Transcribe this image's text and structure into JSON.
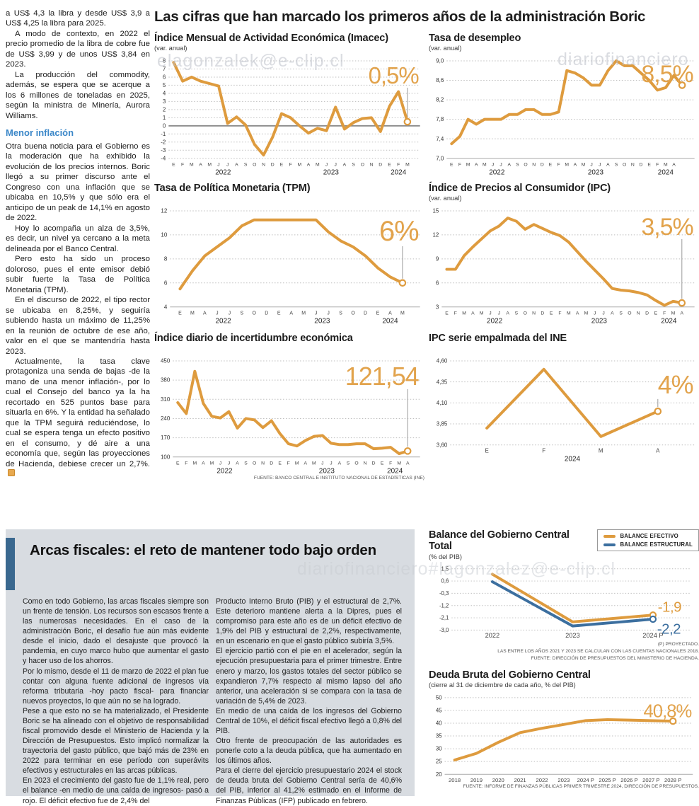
{
  "colors": {
    "accent": "#de9b3e",
    "headline": "#e2a34c",
    "blue": "#3c6f9f",
    "subhead_blue": "#3b87c8",
    "panel_bg": "#d8dce1",
    "panel_bar": "#3a688f",
    "grid": "#bfbfbf"
  },
  "watermarks": {
    "wm1": "elagonzalek@e-clip.cl",
    "wm2": "diariofinanciero",
    "wm3": "diariofinanciero#lagonzalez@e-clip.cl"
  },
  "main_title": "Las cifras que han marcado los primeros años de la administración Boric",
  "left_article": {
    "paragraphs_before": [
      "a US$ 4,3 la libra y desde US$ 3,9 a US$ 4,25 la libra para 2025.",
      "A modo de contexto, en 2022 el precio promedio de la libra de cobre fue de US$ 3,99 y de unos US$ 3,84 en 2023.",
      "La producción del commodity, además, se espera que se acerque a los 6 millones de toneladas en 2025, según la ministra de Minería, Aurora Williams."
    ],
    "subhead": "Menor inflación",
    "paragraphs_after": [
      "Otra buena noticia para el Gobierno es la moderación que ha exhibido la evolución de los precios internos. Boric llegó a su primer discurso ante el Congreso con una inflación que se ubicaba en 10,5% y que sólo era el anticipo de un peak de 14,1% en agosto de 2022.",
      "Hoy lo acompaña un alza de 3,5%, es decir, un nivel ya cercano a la meta delineada por el Banco Central.",
      "Pero esto ha sido un proceso doloroso, pues el ente emisor debió subir fuerte la Tasa de Política Monetaria (TPM).",
      "En el discurso de 2022, el tipo rector se ubicaba en 8,25%, y seguiría subiendo hasta un máximo de 11,25% en la reunión de octubre de ese año, valor en el que se mantendría hasta 2023.",
      "Actualmente, la tasa clave protagoniza una senda de bajas -de la mano de una menor inflación-, por lo cual el Consejo del banco ya la ha recortado en 525 puntos base para situarla en 6%. Y la entidad ha señalado que la TPM seguirá reduciéndose, lo cual se espera tenga un efecto positivo en el consumo, y dé aire a una economía que, según las proyecciones de Hacienda, debiese crecer un 2,7%."
    ]
  },
  "fiscal_panel": {
    "title": "Arcas fiscales: el reto de mantener todo bajo orden",
    "col1": [
      "Como en todo Gobierno, las arcas fiscales siempre son un frente de tensión. Los recursos son escasos frente a las numerosas necesidades. En el caso de la administración Boric, el desafío fue aún más evidente desde el inicio, dado el desajuste que provocó la pandemia, en cuyo marco hubo que aumentar el gasto y hacer uso de los ahorros.",
      "Por lo mismo, desde el 11 de marzo de 2022 el plan fue contar con alguna fuente adicional de ingresos vía reforma tributaria -hoy pacto fiscal- para financiar nuevos proyectos, lo que aún no se ha logrado.",
      "Pese a que esto no se ha materializado, el Presidente Boric se ha alineado con el objetivo de responsabilidad fiscal promovido desde el Ministerio de Hacienda y la Dirección de Presupuestos. Esto implicó normalizar la trayectoria del gasto público, que bajó más de 23% en 2022 para terminar en ese período con superávits efectivos y estructurales en las arcas públicas.",
      "En 2023 el crecimiento del gasto fue de 1,1% real, pero el balance -en medio de una caída de ingresos-  pasó a rojo. El déficit efectivo fue de 2,4% del"
    ],
    "col2": [
      "Producto Interno Bruto (PIB) y el estructural de 2,7%. Este deterioro mantiene alerta a la Dipres, pues el compromiso para este año es de un déficit efectivo de 1,9% del PIB y estructural de 2,2%, respectivamente, en un escenario en que el gasto público subiría 3,5%.",
      "El ejercicio partió con el pie en el acelerador, según la ejecución presupuestaria para el primer trimestre. Entre enero y marzo, los gastos totales del sector público se expandieron 7,7% respecto al mismo lapso del año anterior, una aceleración si se compara con la tasa de variación de 5,4% de 2023.",
      "En medio de una caída de los ingresos del Gobierno Central de 10%, el déficit fiscal efectivo llegó a 0,8% del PIB.",
      "Otro frente de preocupación de las autoridades es ponerle coto a la deuda pública, que ha aumentado en los últimos años.",
      "Para el cierre del ejercicio presupuestario 2024 el stock de deuda bruta del Gobierno Central sería de 40,6% del PIB, inferior al 41,2% estimado en el Informe de Finanzas Públicas (IFP) publicado en febrero."
    ]
  },
  "chart_data": [
    {
      "type": "line",
      "title": "Índice Mensual de Actividad Económica (Imacec)",
      "subtitle": "(var. anual)",
      "headline": "0,5%",
      "headline_size": 33,
      "headline_dy": 32,
      "pointer": true,
      "pointer_top": 38,
      "yticks": [
        8,
        7,
        6,
        5,
        4,
        3,
        2,
        1,
        0,
        -1,
        -2,
        -3,
        -4
      ],
      "ytick_labels": [
        "8",
        "7",
        "6",
        "5",
        "4",
        "3",
        "2",
        "1",
        "0",
        "-1",
        "-2",
        "-3",
        "-4"
      ],
      "solid_at": 0,
      "ml": 20,
      "inset": [
        0.02,
        0.95
      ],
      "xlabels": [
        "E",
        "F",
        "M",
        "A",
        "M",
        "J",
        "J",
        "A",
        "S",
        "O",
        "N",
        "D",
        "E",
        "F",
        "M",
        "A",
        "M",
        "J",
        "J",
        "A",
        "S",
        "O",
        "N",
        "D",
        "E",
        "F",
        "M"
      ],
      "years": [
        {
          "label": "2022",
          "index": 5.5
        },
        {
          "label": "2023",
          "index": 17.5
        },
        {
          "label": "2024",
          "index": 25
        }
      ],
      "series": [
        {
          "name": "Imacec",
          "color": "accent",
          "values": [
            7.8,
            5.5,
            6,
            5.5,
            5.2,
            4.9,
            0.3,
            1.1,
            0.1,
            -2.3,
            -3.6,
            -1.4,
            1.5,
            1,
            0,
            -0.9,
            -0.3,
            -0.6,
            2.3,
            -0.4,
            0.4,
            0.9,
            1,
            -0.7,
            2.4,
            4.2,
            0.5
          ]
        }
      ],
      "source": ""
    },
    {
      "type": "line",
      "title": "Tasa de desempleo",
      "subtitle": "(var. anual)",
      "headline": "8,5%",
      "headline_size": 34,
      "headline_dy": 30,
      "pointer": true,
      "pointer_top": 36,
      "yticks": [
        9,
        8.6,
        8.2,
        7.8,
        7.4,
        7
      ],
      "ytick_labels": [
        "9,0",
        "8,6",
        "8,2",
        "7,8",
        "7,4",
        "7,0"
      ],
      "baseline_solid": true,
      "ml": 25,
      "inset": [
        0.02,
        0.95
      ],
      "xlabels": [
        "E",
        "F",
        "M",
        "A",
        "M",
        "J",
        "J",
        "A",
        "S",
        "O",
        "N",
        "D",
        "E",
        "F",
        "M",
        "A",
        "M",
        "J",
        "J",
        "A",
        "S",
        "O",
        "N",
        "D",
        "E",
        "F",
        "M",
        "A",
        ""
      ],
      "years": [
        {
          "label": "2022",
          "index": 5.5
        },
        {
          "label": "2023",
          "index": 17.5
        },
        {
          "label": "2024",
          "index": 26
        }
      ],
      "series": [
        {
          "name": "Tasa de desempleo",
          "color": "accent",
          "values": [
            7.3,
            7.45,
            7.8,
            7.7,
            7.8,
            7.8,
            7.8,
            7.9,
            7.9,
            8,
            8,
            7.9,
            7.9,
            7.95,
            8.8,
            8.75,
            8.65,
            8.5,
            8.5,
            8.8,
            9,
            8.9,
            8.9,
            8.75,
            8.6,
            8.4,
            8.45,
            8.7,
            8.5
          ]
        }
      ],
      "source": ""
    },
    {
      "type": "line",
      "title": "Tasa de Política Monetaria (TPM)",
      "subtitle": "",
      "headline": "6%",
      "headline_size": 40,
      "headline_dy": 42,
      "pointer": true,
      "pointer_top": 50,
      "yticks": [
        12,
        10,
        8,
        6,
        4
      ],
      "ytick_labels": [
        "12",
        "10",
        "8",
        "6",
        "4"
      ],
      "baseline_solid": true,
      "ml": 22,
      "inset": [
        0.04,
        0.93
      ],
      "xfont": 7,
      "xlabels": [
        "E",
        "M",
        "A",
        "J",
        "J",
        "S",
        "O",
        "D",
        "E",
        "A",
        "M",
        "J",
        "J",
        "S",
        "O",
        "D",
        "E",
        "A",
        "M"
      ],
      "years": [
        {
          "label": "2022",
          "index": 3.5
        },
        {
          "label": "2023",
          "index": 11.5
        },
        {
          "label": "2024",
          "index": 17
        }
      ],
      "series": [
        {
          "name": "TPM",
          "color": "accent",
          "values": [
            5.5,
            7,
            8.25,
            9,
            9.75,
            10.75,
            11.25,
            11.25,
            11.25,
            11.25,
            11.25,
            11.25,
            10.25,
            9.5,
            9,
            8.25,
            7.25,
            6.5,
            6
          ]
        }
      ],
      "source": ""
    },
    {
      "type": "line",
      "title": "Índice de Precios al Consumidor (IPC)",
      "subtitle": "(var. anual)",
      "headline": "3,5%",
      "headline_size": 34,
      "headline_dy": 34,
      "pointer": true,
      "pointer_top": 40,
      "yticks": [
        15,
        12,
        9,
        6,
        3
      ],
      "ytick_labels": [
        "15",
        "12",
        "9",
        "6",
        "3"
      ],
      "baseline_solid": true,
      "ml": 18,
      "inset": [
        0.02,
        0.95
      ],
      "xlabels": [
        "E",
        "F",
        "M",
        "A",
        "M",
        "J",
        "J",
        "A",
        "S",
        "O",
        "N",
        "D",
        "E",
        "F",
        "M",
        "A",
        "M",
        "J",
        "J",
        "A",
        "S",
        "O",
        "N",
        "D",
        "E",
        "F",
        "M",
        "A"
      ],
      "years": [
        {
          "label": "2022",
          "index": 5.5
        },
        {
          "label": "2023",
          "index": 17.5
        },
        {
          "label": "2024",
          "index": 25.5
        }
      ],
      "series": [
        {
          "name": "IPC",
          "color": "accent",
          "values": [
            7.7,
            7.7,
            9.4,
            10.5,
            11.5,
            12.5,
            13.1,
            14.1,
            13.7,
            12.7,
            13.3,
            12.8,
            12.3,
            11.9,
            11.1,
            9.9,
            8.7,
            7.6,
            6.5,
            5.3,
            5.1,
            5,
            4.8,
            4.5,
            3.8,
            3.2,
            3.7,
            3.5
          ]
        }
      ],
      "source": ""
    },
    {
      "type": "line",
      "title": "Índice diario de incertidumbre económica",
      "subtitle": "",
      "headline": "121,54",
      "headline_size": 36,
      "headline_dy": 34,
      "pointer": true,
      "pointer_top": 40,
      "yticks": [
        450,
        380,
        310,
        240,
        170,
        100
      ],
      "ytick_labels": [
        "450",
        "380",
        "310",
        "240",
        "170",
        "100"
      ],
      "baseline_solid": true,
      "ml": 26,
      "inset": [
        0.02,
        0.95
      ],
      "xlabels": [
        "E",
        "F",
        "M",
        "A",
        "M",
        "J",
        "J",
        "A",
        "S",
        "O",
        "N",
        "D",
        "E",
        "F",
        "M",
        "A",
        "M",
        "J",
        "J",
        "A",
        "S",
        "O",
        "N",
        "D",
        "E",
        "F",
        "M",
        "A"
      ],
      "years": [
        {
          "label": "2022",
          "index": 5.5
        },
        {
          "label": "2023",
          "index": 17.5
        },
        {
          "label": "2024",
          "index": 25.5
        }
      ],
      "series": [
        {
          "name": "Incertidumbre económica",
          "color": "accent",
          "values": [
            298,
            258,
            412,
            295,
            248,
            242,
            265,
            205,
            240,
            235,
            207,
            232,
            185,
            148,
            140,
            160,
            175,
            178,
            150,
            145,
            145,
            148,
            148,
            130,
            132,
            135,
            112,
            121.54
          ]
        }
      ],
      "source": "FUENTE: BANCO CENTRAL E INSTITUTO NACIONAL DE ESTADÍSTICAS (INE)"
    },
    {
      "type": "line",
      "title": "IPC serie empalmada del INE",
      "subtitle": "",
      "headline": "4%",
      "headline_size": 36,
      "headline_dy": 46,
      "pointer": true,
      "pointer_top": 54,
      "yticks": [
        4.6,
        4.35,
        4.1,
        3.85,
        3.6
      ],
      "ytick_labels": [
        "4,60",
        "4,35",
        "4,10",
        "3,85",
        "3,60"
      ],
      "ml": 30,
      "inset": [
        0.15,
        0.85
      ],
      "xfont": 8,
      "xlabels": [
        "E",
        "F",
        "M",
        "A"
      ],
      "years": [
        {
          "label": "2024",
          "index": 1.5
        }
      ],
      "series": [
        {
          "name": "IPC serie empalmada",
          "color": "accent",
          "values": [
            3.8,
            4.5,
            3.7,
            4
          ]
        }
      ],
      "source": ""
    },
    {
      "type": "line",
      "title": "Balance del Gobierno Central Total",
      "subtitle": "(% del PIB)",
      "yticks": [
        1.5,
        0.6,
        -0.3,
        -1.2,
        -2.1,
        -3
      ],
      "ytick_labels": [
        "1,5",
        "0,6",
        "-0,3",
        "-1,2",
        "-2,1",
        "-3,0"
      ],
      "ml": 28,
      "inset": [
        0.17,
        0.84
      ],
      "xfont": 9.5,
      "mb": 16,
      "xlabels": [
        "2022",
        "2023",
        "2024 P"
      ],
      "years": [],
      "legend": [
        {
          "label": "BALANCE EFECTIVO",
          "color": "accent"
        },
        {
          "label": "BALANCE ESTRUCTURAL",
          "color": "blue"
        }
      ],
      "series": [
        {
          "name": "Balance efectivo",
          "color": "accent",
          "values": [
            1.1,
            -2.4,
            -1.9
          ],
          "end_label": "-1,9",
          "end_dx": 7,
          "end_dy": -5
        },
        {
          "name": "Balance estructural",
          "color": "blue",
          "values": [
            0.55,
            -2.7,
            -2.2
          ],
          "end_label": "-2,2",
          "end_dx": 6,
          "end_dy": 21
        }
      ],
      "footnotes": [
        "(P) PROYECTADO.",
        "LAS ENTRE LOS AÑOS 2021 Y 2023 SE CALCULAN  CON LAS CUENTAS NACIONALES 2018.",
        "FUENTE: DIRECCIÓN DE PRESUPUESTOS DEL MINISTERIO DE HACIENDA."
      ],
      "source": ""
    },
    {
      "type": "line",
      "title": "Deuda Bruta del Gobierno Central",
      "subtitle": "(cierre al 31 de diciembre de cada año, % del PIB)",
      "headline": "40,8%",
      "headline_size": 26,
      "headline_dy": 28,
      "yticks": [
        50,
        45,
        40,
        35,
        30,
        25,
        20
      ],
      "ytick_labels": [
        "50",
        "45",
        "40",
        "35",
        "30",
        "25",
        "20"
      ],
      "baseline_solid": true,
      "ml": 20,
      "inset": [
        0.04,
        0.92
      ],
      "xfont": 7.8,
      "mb": 14,
      "xlabels": [
        "2018",
        "2019",
        "2020",
        "2021",
        "2022",
        "2023",
        "2024 P",
        "2025 P",
        "2026 P",
        "2027 P",
        "2028 P"
      ],
      "years": [],
      "series": [
        {
          "name": "Deuda bruta",
          "color": "accent",
          "values": [
            25.6,
            28.2,
            32.5,
            36.3,
            38,
            39.5,
            41,
            41.4,
            41.2,
            41,
            40.8
          ]
        }
      ],
      "source": "FUENTE: INFORME DE FINANZAS PÚBLICAS PRIMER TRIMESTRE 2024, DIRECCIÓN DE PRESUPUESTOS."
    }
  ]
}
